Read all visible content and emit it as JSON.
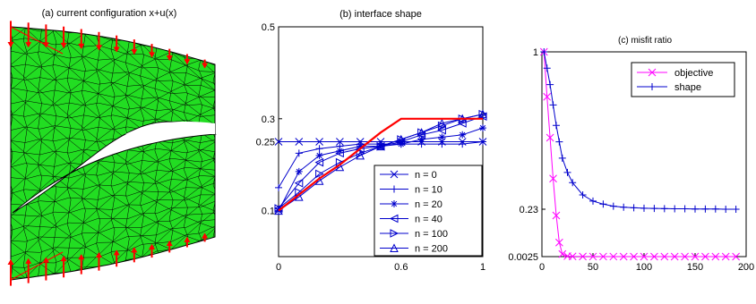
{
  "colors": {
    "mesh_fill": "#22dd22",
    "mesh_line": "#000000",
    "arrow": "#ff0000",
    "series_blue": "#0000cc",
    "target_red": "#ff0000",
    "objective_magenta": "#ff00ff"
  },
  "chart_data": [
    {
      "type": "mesh",
      "title": "(a) current configuration x+u(x)"
    },
    {
      "type": "line",
      "title": "(b) interface shape",
      "xlabel": "",
      "ylabel": "",
      "xlim": [
        0,
        1
      ],
      "ylim": [
        0,
        0.5
      ],
      "xticks": [
        0,
        0.6,
        1
      ],
      "xtick_labels": [
        "0",
        "0.6",
        "1"
      ],
      "yticks": [
        0.1,
        0.25,
        0.3,
        0.5
      ],
      "ytick_labels": [
        "0.1",
        "0.25",
        "0.3",
        "0.5"
      ],
      "legend_position": "bottom-right",
      "x": [
        0,
        0.1,
        0.2,
        0.3,
        0.4,
        0.5,
        0.6,
        0.7,
        0.8,
        0.9,
        1
      ],
      "target": {
        "x": [
          0,
          0.1,
          0.2,
          0.3,
          0.4,
          0.5,
          0.6,
          1
        ],
        "y": [
          0.1,
          0.135,
          0.17,
          0.2,
          0.235,
          0.27,
          0.3,
          0.3
        ]
      },
      "series": [
        {
          "name": "n = 0",
          "marker": "x",
          "y": [
            0.25,
            0.25,
            0.25,
            0.25,
            0.25,
            0.25,
            0.25,
            0.25,
            0.25,
            0.25,
            0.25
          ]
        },
        {
          "name": "n = 10",
          "marker": "+",
          "y": [
            0.15,
            0.225,
            0.235,
            0.24,
            0.245,
            0.245,
            0.245,
            0.245,
            0.245,
            0.245,
            0.25
          ]
        },
        {
          "name": "n = 20",
          "marker": "*",
          "y": [
            0.1,
            0.185,
            0.22,
            0.23,
            0.24,
            0.24,
            0.245,
            0.255,
            0.26,
            0.265,
            0.28
          ]
        },
        {
          "name": "n = 40",
          "marker": "<",
          "y": [
            0.105,
            0.16,
            0.205,
            0.225,
            0.235,
            0.24,
            0.25,
            0.265,
            0.275,
            0.29,
            0.305
          ]
        },
        {
          "name": "n = 100",
          "marker": ">",
          "y": [
            0.105,
            0.14,
            0.18,
            0.205,
            0.225,
            0.24,
            0.255,
            0.27,
            0.285,
            0.3,
            0.31
          ]
        },
        {
          "name": "n = 200",
          "marker": "^",
          "y": [
            0.1,
            0.13,
            0.165,
            0.195,
            0.22,
            0.24,
            0.255,
            0.27,
            0.29,
            0.3,
            0.31
          ]
        }
      ]
    },
    {
      "type": "line",
      "title": "(c) misfit ratio",
      "xlabel": "",
      "ylabel": "",
      "xlim": [
        0,
        200
      ],
      "xticks": [
        0,
        50,
        100,
        150,
        200
      ],
      "xtick_labels": [
        "0",
        "50",
        "100",
        "150",
        "200"
      ],
      "yticks": [
        0.0025,
        0.23,
        1
      ],
      "ytick_labels": [
        "0.0025",
        "0.23",
        "1"
      ],
      "legend_position": "top-right",
      "series": [
        {
          "name": "objective",
          "marker": "x",
          "x": [
            2,
            5,
            8,
            11,
            14,
            17,
            20,
            25,
            30,
            40,
            50,
            60,
            70,
            80,
            90,
            100,
            110,
            120,
            130,
            140,
            150,
            160,
            170,
            180,
            190
          ],
          "y": [
            1,
            0.78,
            0.58,
            0.38,
            0.2,
            0.07,
            0.015,
            0.005,
            0.0035,
            0.003,
            0.0028,
            0.0027,
            0.0027,
            0.0026,
            0.0026,
            0.0026,
            0.0025,
            0.0025,
            0.0025,
            0.0025,
            0.0025,
            0.0025,
            0.0025,
            0.0025,
            0.0025
          ]
        },
        {
          "name": "shape",
          "marker": "+",
          "x": [
            2,
            5,
            8,
            11,
            14,
            17,
            20,
            25,
            30,
            40,
            50,
            60,
            70,
            80,
            90,
            100,
            110,
            120,
            130,
            140,
            150,
            160,
            170,
            180,
            190
          ],
          "y": [
            1,
            0.92,
            0.84,
            0.74,
            0.64,
            0.56,
            0.48,
            0.41,
            0.36,
            0.3,
            0.27,
            0.255,
            0.245,
            0.24,
            0.237,
            0.235,
            0.234,
            0.233,
            0.232,
            0.232,
            0.231,
            0.231,
            0.231,
            0.23,
            0.23
          ]
        }
      ]
    }
  ]
}
